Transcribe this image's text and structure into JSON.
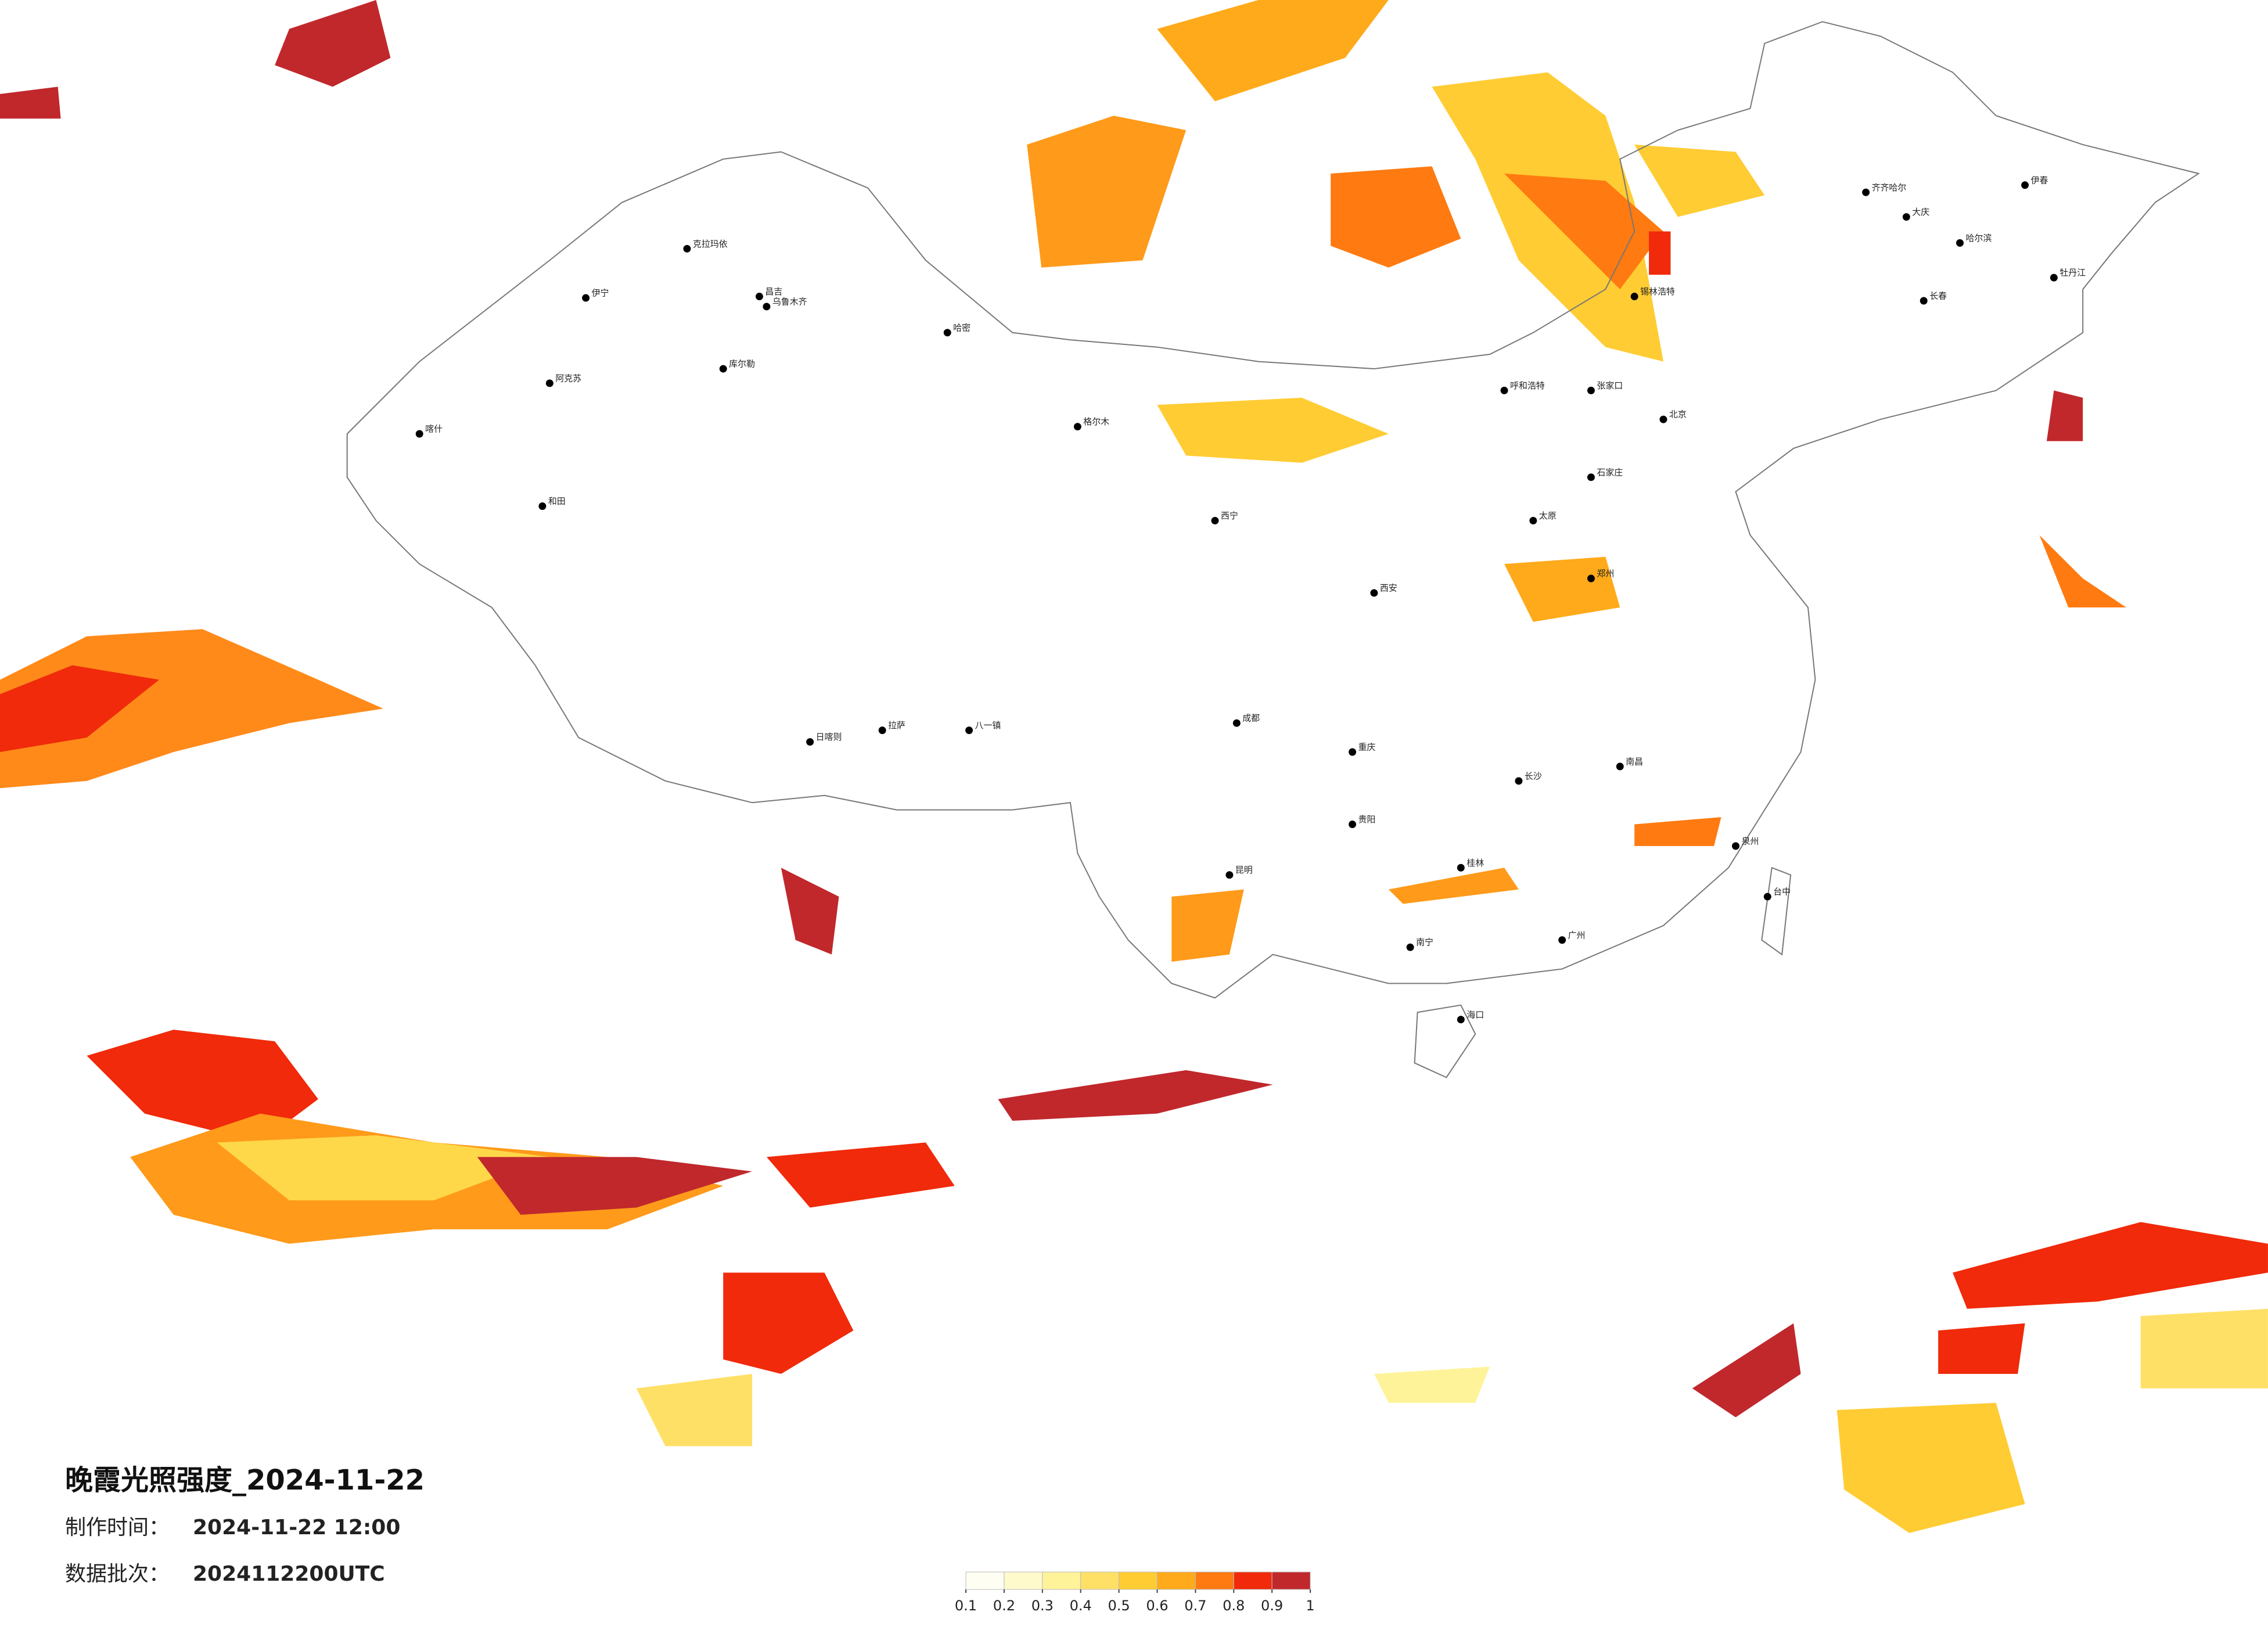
{
  "header": {
    "title": "晚霞光照强度_2024-11-22",
    "made_label": "制作时间：",
    "made_value": "2024-11-22 12:00",
    "batch_label": "数据批次：",
    "batch_value": "2024112200UTC"
  },
  "colorbar": {
    "colors": [
      "#fffef2",
      "#fffacc",
      "#fff39a",
      "#ffe066",
      "#ffcc33",
      "#ffaa1a",
      "#ff7a10",
      "#f02a0a",
      "#c0282c"
    ],
    "ticks": [
      0.1,
      0.2,
      0.3,
      0.4,
      0.5,
      0.6,
      0.7,
      0.8,
      0.9,
      1
    ]
  },
  "cities": [
    "乌鲁木齐",
    "昌吉",
    "伊宁",
    "克拉玛依",
    "库尔勒",
    "哈密",
    "喀什",
    "和田",
    "阿克苏",
    "格尔木",
    "西宁",
    "拉萨",
    "日喀则",
    "八一镇",
    "呼和浩特",
    "北京",
    "石家庄",
    "太原",
    "郑州",
    "西安",
    "成都",
    "重庆",
    "贵阳",
    "昆明",
    "南宁",
    "桂林",
    "长沙",
    "南昌",
    "广州",
    "海口",
    "台中",
    "哈尔滨",
    "长春",
    "齐齐哈尔",
    "大庆",
    "伊春",
    "牡丹江",
    "锡林浩特",
    "张家口",
    "泉州"
  ]
}
